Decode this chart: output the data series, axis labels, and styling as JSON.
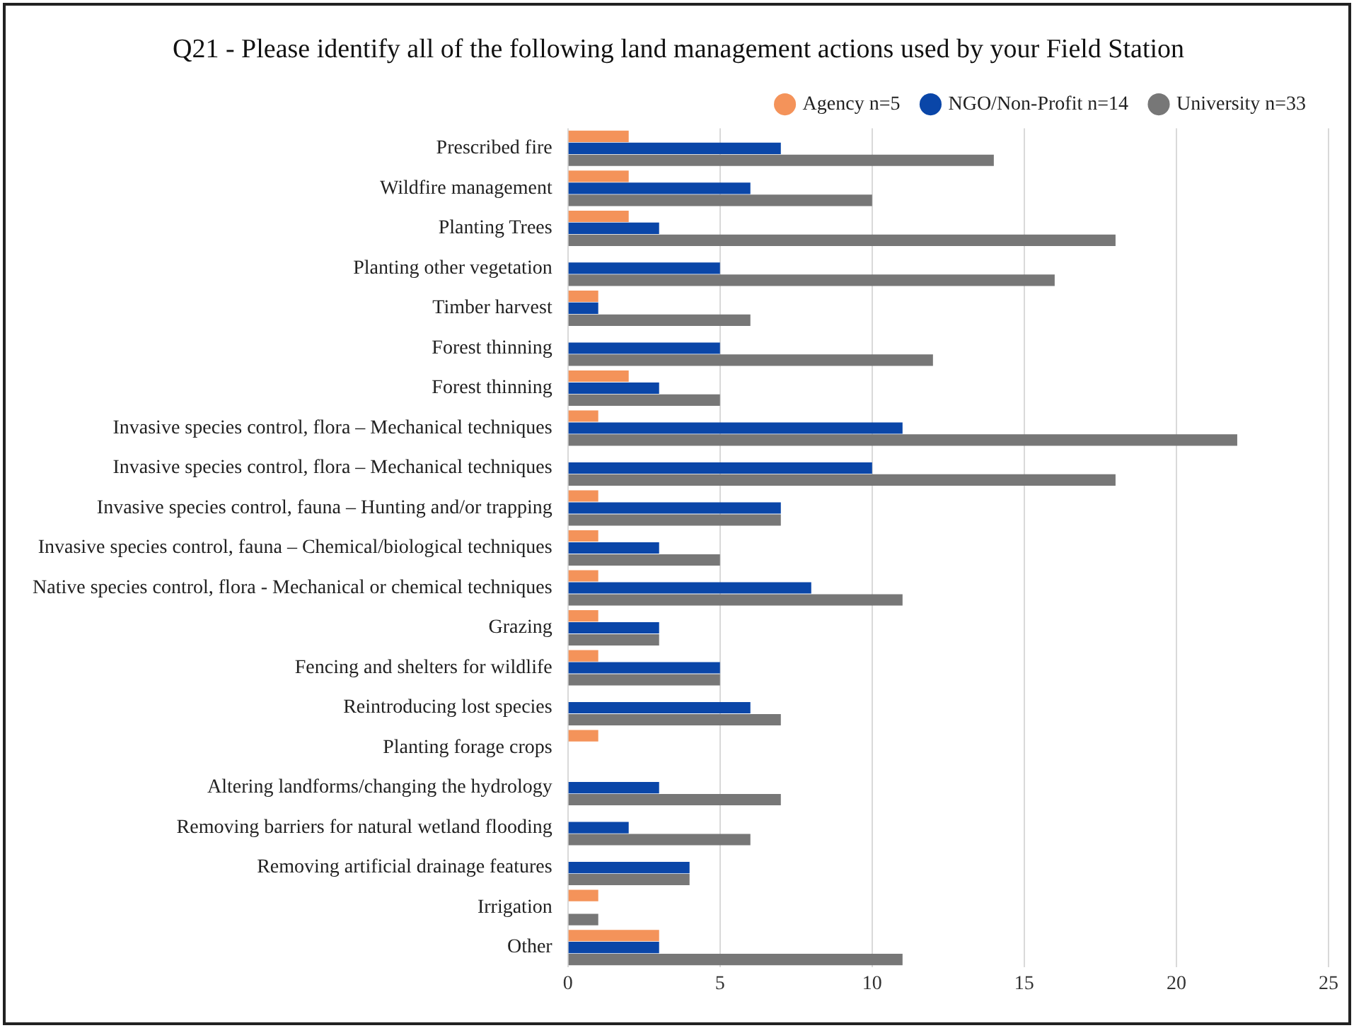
{
  "chart_data": {
    "type": "bar",
    "orientation": "horizontal",
    "title": "Q21 - Please identify all of the following land management actions used by your Field Station",
    "categories": [
      "Prescribed fire",
      "Wildfire management",
      "Planting Trees",
      "Planting other vegetation",
      "Timber harvest",
      "Forest thinning",
      "Forest thinning",
      "Invasive species control, flora – Mechanical techniques",
      "Invasive species control, flora – Mechanical techniques",
      "Invasive species control, fauna – Hunting and/or trapping",
      "Invasive species control, fauna – Chemical/biological techniques",
      "Native species control, flora - Mechanical or chemical techniques",
      "Grazing",
      "Fencing and shelters for wildlife",
      "Reintroducing lost species",
      "Planting forage crops",
      "Altering landforms/changing the hydrology",
      "Removing barriers for natural wetland flooding",
      "Removing artificial drainage features",
      "Irrigation",
      "Other"
    ],
    "series": [
      {
        "name": "Agency n=5",
        "color": "#f4935a",
        "values": [
          2,
          2,
          2,
          0,
          1,
          0,
          2,
          1,
          0,
          1,
          1,
          1,
          1,
          1,
          0,
          1,
          0,
          0,
          0,
          1,
          3
        ]
      },
      {
        "name": "NGO/Non-Profit n=14",
        "color": "#0a46a8",
        "values": [
          7,
          6,
          3,
          5,
          1,
          5,
          3,
          11,
          10,
          7,
          3,
          8,
          3,
          5,
          6,
          0,
          3,
          2,
          4,
          0,
          3
        ]
      },
      {
        "name": "University n=33",
        "color": "#777777",
        "values": [
          14,
          10,
          18,
          16,
          6,
          12,
          5,
          22,
          18,
          7,
          5,
          11,
          3,
          5,
          7,
          0,
          7,
          6,
          4,
          1,
          11
        ]
      }
    ],
    "xlim": [
      0,
      25
    ],
    "xticks": [
      0,
      5,
      10,
      15,
      20,
      25
    ],
    "grid": "x",
    "legend": "top right"
  }
}
